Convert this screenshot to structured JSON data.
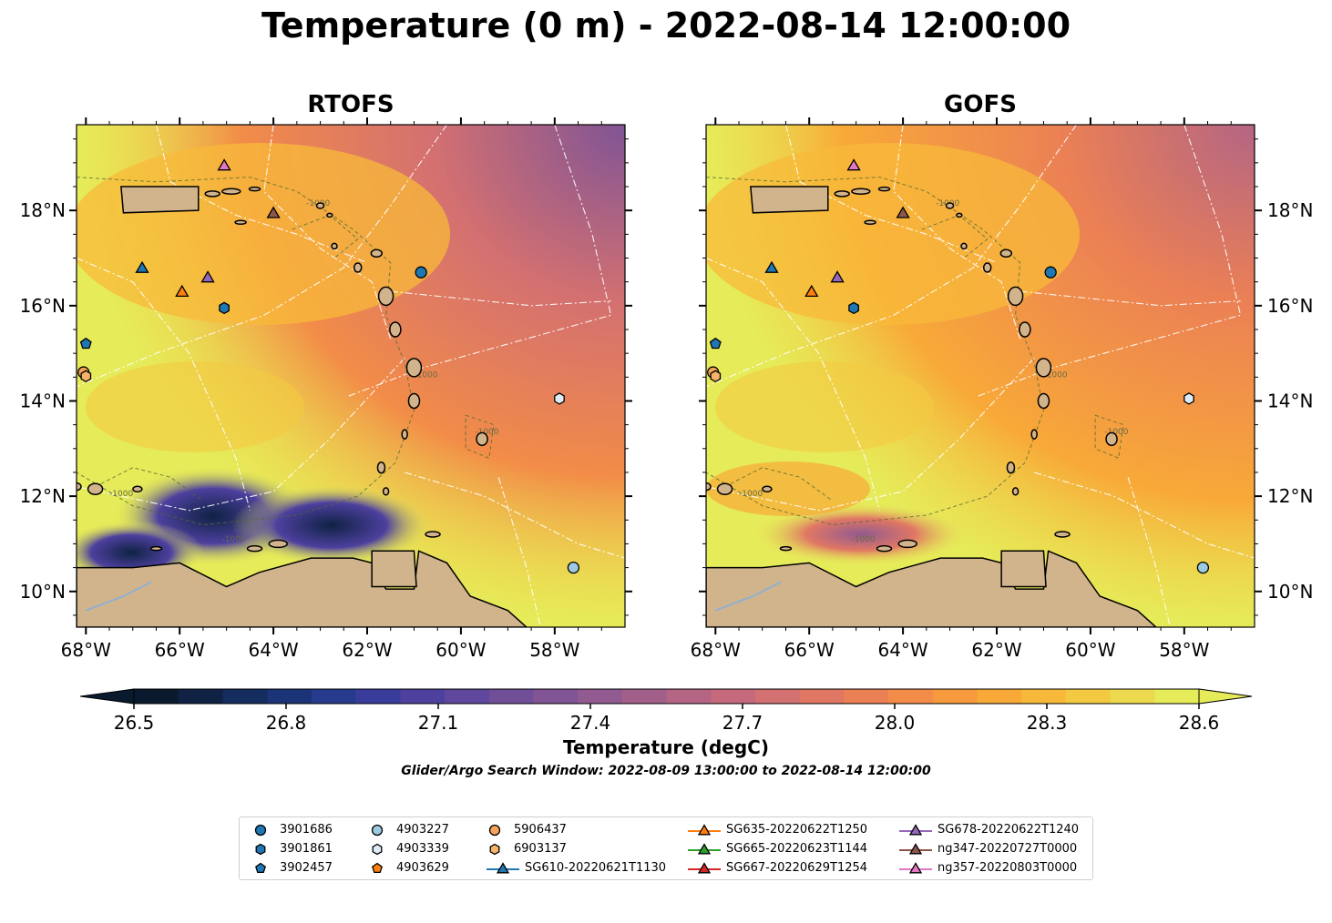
{
  "title": "Temperature (0 m) - 2022-08-14 12:00:00",
  "panels": [
    {
      "title": "RTOFS"
    },
    {
      "title": "GOFS"
    }
  ],
  "lat_labels": [
    "18°N",
    "16°N",
    "14°N",
    "12°N",
    "10°N"
  ],
  "lon_labels": [
    "68°W",
    "66°W",
    "64°W",
    "62°W",
    "60°W",
    "58°W"
  ],
  "contour_label": "-1000",
  "colorbar": {
    "label": "Temperature (degC)",
    "ticks": [
      "26.5",
      "26.8",
      "27.1",
      "27.4",
      "27.7",
      "28.0",
      "28.3",
      "28.6"
    ],
    "colors": [
      "#0a1a2e",
      "#0f2244",
      "#142c5e",
      "#1b3478",
      "#263a8e",
      "#3a3c9c",
      "#4d409e",
      "#5e479c",
      "#704e98",
      "#805495",
      "#915a90",
      "#a25f8a",
      "#b46584",
      "#c46a7c",
      "#d37071",
      "#e07764",
      "#eb8055",
      "#f28c48",
      "#f69a3d",
      "#f8a938",
      "#f8b93a",
      "#f4c942",
      "#ecd94d",
      "#e6eb59"
    ],
    "vmin": 26.5,
    "vmax": 28.6
  },
  "search_window": "Glider/Argo Search Window: 2022-08-09 13:00:00 to 2022-08-14 12:00:00",
  "legend": [
    {
      "label": "3901686",
      "marker": "circle",
      "color": "#1f77b4",
      "line": false
    },
    {
      "label": "3901861",
      "marker": "hexagon",
      "color": "#1f77b4",
      "line": false
    },
    {
      "label": "3902457",
      "marker": "pentagon",
      "color": "#1f77b4",
      "line": false
    },
    {
      "label": "4903227",
      "marker": "circle",
      "color": "#9ecae1",
      "line": false
    },
    {
      "label": "4903339",
      "marker": "hexagon",
      "color": "#deebf7",
      "line": false
    },
    {
      "label": "4903629",
      "marker": "pentagon",
      "color": "#ff7f0e",
      "line": false
    },
    {
      "label": "5906437",
      "marker": "circle",
      "color": "#f5a25a",
      "line": false
    },
    {
      "label": "6903137",
      "marker": "hexagon",
      "color": "#f7b26a",
      "line": false
    },
    {
      "label": "SG610-20220621T1130",
      "marker": "triangle",
      "color": "#1f77b4",
      "line": true
    },
    {
      "label": "SG635-20220622T1250",
      "marker": "triangle",
      "color": "#ff7f0e",
      "line": true
    },
    {
      "label": "SG665-20220623T1144",
      "marker": "triangle",
      "color": "#2ca02c",
      "line": true
    },
    {
      "label": "SG667-20220629T1254",
      "marker": "triangle",
      "color": "#d62728",
      "line": true
    },
    {
      "label": "SG678-20220622T1240",
      "marker": "triangle",
      "color": "#9467bd",
      "line": true
    },
    {
      "label": "ng347-20220727T0000",
      "marker": "triangle",
      "color": "#8c564b",
      "line": true
    },
    {
      "label": "ng357-20220803T0000",
      "marker": "triangle",
      "color": "#e377c2",
      "line": true
    }
  ],
  "map_extent": {
    "lon": [
      -68.2,
      -56.5
    ],
    "lat": [
      9.25,
      19.8
    ]
  },
  "observations": [
    {
      "id": "3901686",
      "lon": -60.85,
      "lat": 16.7
    },
    {
      "id": "3901861",
      "lon": -65.05,
      "lat": 15.95
    },
    {
      "id": "3902457",
      "lon": -68.0,
      "lat": 15.2
    },
    {
      "id": "4903227",
      "lon": -57.6,
      "lat": 10.5
    },
    {
      "id": "4903339",
      "lon": -57.9,
      "lat": 14.05
    },
    {
      "id": "5906437",
      "lon": -68.05,
      "lat": 14.6
    },
    {
      "id": "6903137",
      "lon": -68.0,
      "lat": 14.52
    },
    {
      "id": "SG610-20220621T1130",
      "lon": -66.8,
      "lat": 16.8
    },
    {
      "id": "SG635-20220622T1250",
      "lon": -65.95,
      "lat": 16.3
    },
    {
      "id": "SG678-20220622T1240",
      "lon": -65.4,
      "lat": 16.6
    },
    {
      "id": "ng347-20220727T0000",
      "lon": -64.0,
      "lat": 17.95
    },
    {
      "id": "ng357-20220803T0000",
      "lon": -65.05,
      "lat": 18.95
    }
  ]
}
